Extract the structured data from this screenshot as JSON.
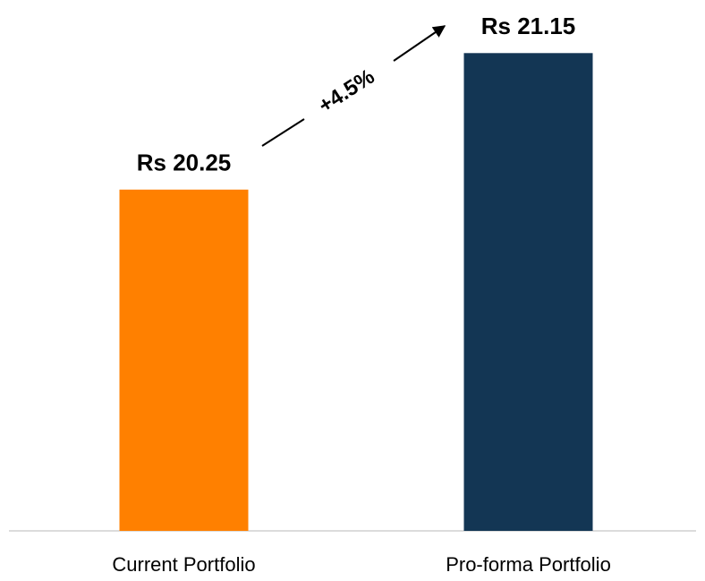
{
  "chart_data": {
    "type": "bar",
    "categories": [
      "Current Portfolio",
      "Pro-forma Portfolio"
    ],
    "values": [
      20.25,
      21.15
    ],
    "value_labels": [
      "Rs 20.25",
      "Rs 21.15"
    ],
    "colors": [
      "#ff8000",
      "#133654"
    ],
    "annotation": "+4.5%",
    "ylim": [
      18,
      21.5
    ]
  }
}
